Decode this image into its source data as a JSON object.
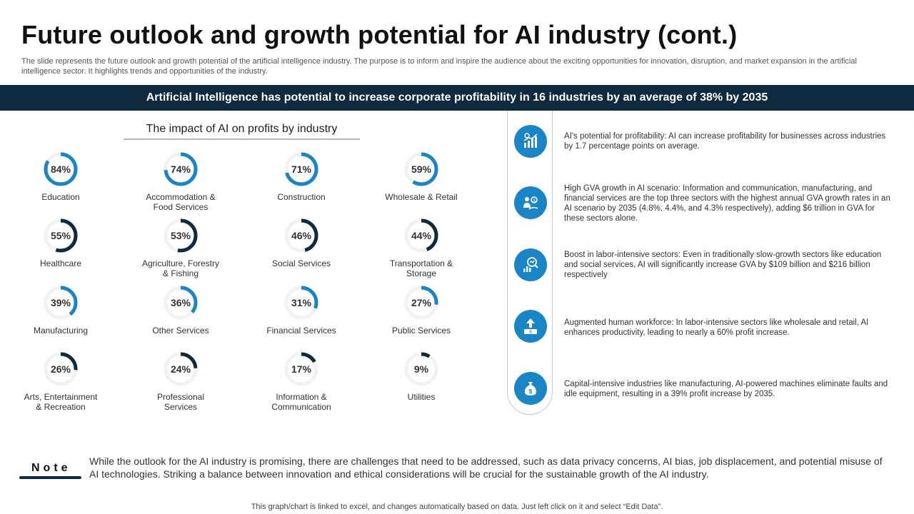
{
  "header": {
    "title": "Future outlook and growth potential for AI industry (cont.)",
    "subtitle": "The slide represents the future outlook and growth potential of the artificial intelligence industry. The purpose is to inform and inspire the audience about the exciting opportunities for innovation, disruption, and market expansion in the artificial intelligence sector. It highlights trends and opportunities of the industry."
  },
  "banner": "Artificial Intelligence has potential to increase corporate profitability in 16 industries by an average of 38% by 2035",
  "chart_data": {
    "type": "donut-grid",
    "title": "The impact of AI on profits by industry",
    "unit": "%",
    "categories": [
      "Education",
      "Accommodation & Food Services",
      "Construction",
      "Wholesale & Retail",
      "Healthcare",
      "Agriculture, Forestry & Fishing",
      "Social Services",
      "Transportation & Storage",
      "Manufacturing",
      "Other Services",
      "Financial Services",
      "Public Services",
      "Arts, Entertainment & Recreation",
      "Professional Services",
      "Information & Communication",
      "Utilities"
    ],
    "labels": [
      [
        "Education"
      ],
      [
        "Accommodation &",
        "Food Services"
      ],
      [
        "Construction"
      ],
      [
        "Wholesale & Retail"
      ],
      [
        "Healthcare"
      ],
      [
        "Agriculture, Forestry",
        "& Fishing"
      ],
      [
        "Social Services"
      ],
      [
        "Transportation &",
        "Storage"
      ],
      [
        "Manufacturing"
      ],
      [
        "Other Services"
      ],
      [
        "Financial Services"
      ],
      [
        "Public Services"
      ],
      [
        "Arts, Entertainment",
        "& Recreation"
      ],
      [
        "Professional",
        "Services"
      ],
      [
        "Information &",
        "Communication"
      ],
      [
        "Utilities"
      ]
    ],
    "values": [
      84,
      74,
      71,
      59,
      55,
      53,
      46,
      44,
      39,
      36,
      31,
      27,
      26,
      24,
      17,
      9
    ],
    "value_labels": [
      "84%",
      "74%",
      "71%",
      "59%",
      "55%",
      "53%",
      "46%",
      "44%",
      "39%",
      "36%",
      "31%",
      "27%",
      "26%",
      "24%",
      "17%",
      "9%"
    ],
    "ring_colors": [
      "#1a85c6",
      "#1a85c6",
      "#1a85c6",
      "#1a85c6",
      "#0f2a3f",
      "#0f2a3f",
      "#0f2a3f",
      "#0f2a3f",
      "#1a85c6",
      "#1a85c6",
      "#1a85c6",
      "#1a85c6",
      "#0f2a3f",
      "#0f2a3f",
      "#0f2a3f",
      "#0f2a3f"
    ],
    "track_color": "#f2f2f2",
    "range": [
      0,
      100
    ]
  },
  "insights": [
    {
      "icon": "growth-chart-icon",
      "text": "AI's potential for profitability: AI can increase profitability for businesses across industries by 1.7 percentage points on average."
    },
    {
      "icon": "investor-icon",
      "text": "High GVA growth in AI scenario: Information and communication, manufacturing, and financial services are the top three sectors with the highest annual GVA growth rates in an AI scenario by 2035 (4.8%, 4.4%, and 4.3% respectively), adding $6 trillion in GVA for these sectors alone."
    },
    {
      "icon": "analysis-icon",
      "text": "Boost in labor-intensive sectors: Even in traditionally slow-growth sectors like education and social services, AI will significantly increase GVA by $109 billion and $216 billion respectively"
    },
    {
      "icon": "money-growth-icon",
      "text": "Augmented human workforce: In labor-intensive sectors like wholesale and retail, AI enhances productivity, leading to nearly a 60% profit increase."
    },
    {
      "icon": "money-bag-icon",
      "text": "Capital-intensive industries like manufacturing, AI-powered machines eliminate faults and idle equipment, resulting in a 39% profit increase by 2035."
    }
  ],
  "note": {
    "label": "Note",
    "text": "While the outlook for the AI industry is promising, there are challenges that need to be addressed, such as data privacy concerns, AI bias, job displacement, and potential misuse of AI technologies. Striking a balance between innovation and ethical considerations will be crucial for the sustainable growth of the AI industry."
  },
  "footer": "This graph/chart is linked to excel, and changes automatically based on data. Just left click on it and select “Edit Data”.",
  "colors": {
    "navy": "#0f2a3f",
    "accent": "#1a85c6",
    "track": "#f2f2f2"
  }
}
